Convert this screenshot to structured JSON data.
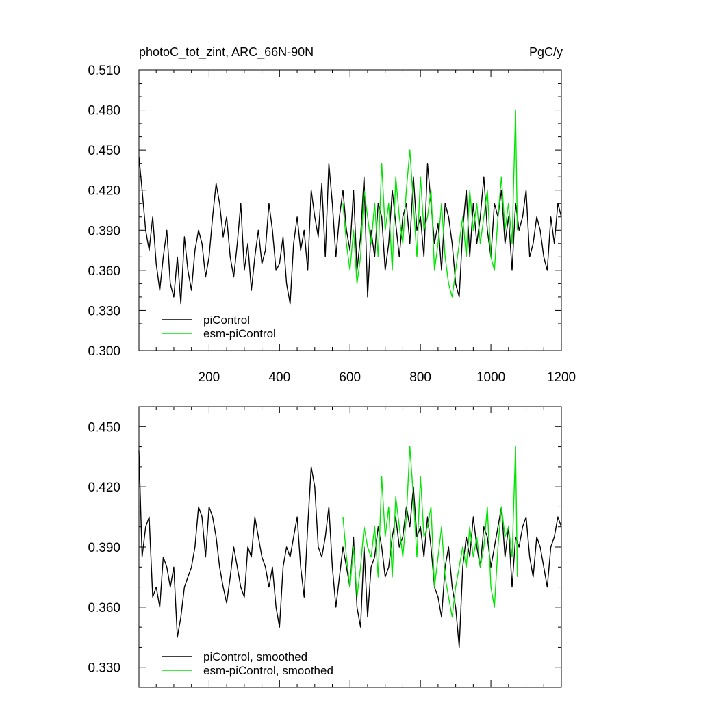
{
  "title": "photoC_tot_zint, ARC_66N-90N",
  "units": "PgC/y",
  "colors": {
    "piControl": "#000000",
    "esm_piControl": "#00e600"
  },
  "chart_data": [
    {
      "type": "line",
      "panel": "top",
      "title": "photoC_tot_zint, ARC_66N-90N",
      "units": "PgC/y",
      "xlim": [
        1,
        1200
      ],
      "ylim": [
        0.3,
        0.51
      ],
      "xticks": [
        200,
        400,
        600,
        800,
        1000,
        1200
      ],
      "xtick_labels": [
        "200",
        "400",
        "600",
        "800",
        "1000",
        "1200"
      ],
      "yticks": [
        0.3,
        0.33,
        0.36,
        0.39,
        0.42,
        0.45,
        0.48,
        0.51
      ],
      "ytick_labels": [
        "0.300",
        "0.330",
        "0.360",
        "0.390",
        "0.420",
        "0.450",
        "0.480",
        "0.510"
      ],
      "legend_position": "bottom-left",
      "series": [
        {
          "name": "piControl",
          "color": "#000000",
          "x": [
            1,
            10,
            20,
            30,
            40,
            50,
            60,
            70,
            80,
            90,
            100,
            110,
            120,
            130,
            140,
            150,
            160,
            170,
            180,
            190,
            200,
            210,
            220,
            230,
            240,
            250,
            260,
            270,
            280,
            290,
            300,
            310,
            320,
            330,
            340,
            350,
            360,
            370,
            380,
            390,
            400,
            410,
            420,
            430,
            440,
            450,
            460,
            470,
            480,
            490,
            500,
            510,
            520,
            530,
            540,
            550,
            560,
            570,
            580,
            590,
            600,
            610,
            620,
            630,
            640,
            650,
            660,
            670,
            680,
            690,
            700,
            710,
            720,
            730,
            740,
            750,
            760,
            770,
            780,
            790,
            800,
            810,
            820,
            830,
            840,
            850,
            860,
            870,
            880,
            890,
            900,
            910,
            920,
            930,
            940,
            950,
            960,
            970,
            980,
            990,
            1000,
            1010,
            1020,
            1030,
            1040,
            1050,
            1060,
            1070,
            1080,
            1090,
            1100,
            1110,
            1120,
            1130,
            1140,
            1150,
            1160,
            1170,
            1180,
            1190,
            1200
          ],
          "y": [
            0.445,
            0.42,
            0.39,
            0.375,
            0.4,
            0.365,
            0.345,
            0.37,
            0.39,
            0.35,
            0.34,
            0.37,
            0.335,
            0.385,
            0.36,
            0.345,
            0.375,
            0.39,
            0.38,
            0.355,
            0.37,
            0.4,
            0.425,
            0.41,
            0.385,
            0.4,
            0.37,
            0.355,
            0.38,
            0.41,
            0.36,
            0.38,
            0.345,
            0.37,
            0.39,
            0.365,
            0.375,
            0.41,
            0.39,
            0.36,
            0.365,
            0.385,
            0.35,
            0.335,
            0.38,
            0.4,
            0.375,
            0.39,
            0.36,
            0.42,
            0.4,
            0.385,
            0.425,
            0.37,
            0.44,
            0.41,
            0.37,
            0.4,
            0.42,
            0.39,
            0.375,
            0.42,
            0.36,
            0.385,
            0.43,
            0.34,
            0.39,
            0.37,
            0.41,
            0.4,
            0.36,
            0.38,
            0.42,
            0.395,
            0.37,
            0.4,
            0.41,
            0.38,
            0.43,
            0.39,
            0.4,
            0.37,
            0.44,
            0.41,
            0.38,
            0.395,
            0.36,
            0.41,
            0.4,
            0.38,
            0.35,
            0.34,
            0.39,
            0.42,
            0.37,
            0.41,
            0.38,
            0.4,
            0.43,
            0.39,
            0.37,
            0.41,
            0.4,
            0.42,
            0.38,
            0.4,
            0.36,
            0.41,
            0.39,
            0.4,
            0.42,
            0.37,
            0.38,
            0.4,
            0.39,
            0.37,
            0.36,
            0.4,
            0.38,
            0.41,
            0.4
          ]
        },
        {
          "name": "esm-piControl",
          "color": "#00e600",
          "x": [
            580,
            590,
            600,
            610,
            620,
            630,
            640,
            650,
            660,
            670,
            680,
            690,
            700,
            710,
            720,
            730,
            740,
            750,
            760,
            770,
            780,
            790,
            800,
            810,
            820,
            830,
            840,
            850,
            860,
            870,
            880,
            890,
            900,
            910,
            920,
            930,
            940,
            950,
            960,
            970,
            980,
            990,
            1000,
            1010,
            1020,
            1030,
            1040,
            1050,
            1060,
            1070,
            1075
          ],
          "y": [
            0.41,
            0.38,
            0.36,
            0.39,
            0.35,
            0.37,
            0.42,
            0.4,
            0.38,
            0.41,
            0.37,
            0.44,
            0.39,
            0.41,
            0.36,
            0.43,
            0.4,
            0.38,
            0.42,
            0.45,
            0.41,
            0.37,
            0.43,
            0.39,
            0.4,
            0.42,
            0.36,
            0.38,
            0.41,
            0.37,
            0.35,
            0.34,
            0.36,
            0.38,
            0.4,
            0.37,
            0.42,
            0.39,
            0.41,
            0.38,
            0.4,
            0.42,
            0.37,
            0.36,
            0.4,
            0.43,
            0.39,
            0.41,
            0.38,
            0.48,
            0.39
          ]
        }
      ]
    },
    {
      "type": "line",
      "panel": "bottom",
      "xlim": [
        1,
        1200
      ],
      "ylim": [
        0.32,
        0.46
      ],
      "yticks": [
        0.33,
        0.36,
        0.39,
        0.42,
        0.45
      ],
      "ytick_labels": [
        "0.330",
        "0.360",
        "0.390",
        "0.420",
        "0.450"
      ],
      "legend_position": "bottom-left",
      "series": [
        {
          "name": "piControl, smoothed",
          "color": "#000000",
          "x": [
            1,
            10,
            20,
            30,
            40,
            50,
            60,
            70,
            80,
            90,
            100,
            110,
            120,
            130,
            140,
            150,
            160,
            170,
            180,
            190,
            200,
            210,
            220,
            230,
            240,
            250,
            260,
            270,
            280,
            290,
            300,
            310,
            320,
            330,
            340,
            350,
            360,
            370,
            380,
            390,
            400,
            410,
            420,
            430,
            440,
            450,
            460,
            470,
            480,
            490,
            500,
            510,
            520,
            530,
            540,
            550,
            560,
            570,
            580,
            590,
            600,
            610,
            620,
            630,
            640,
            650,
            660,
            670,
            680,
            690,
            700,
            710,
            720,
            730,
            740,
            750,
            760,
            770,
            780,
            790,
            800,
            810,
            820,
            830,
            840,
            850,
            860,
            870,
            880,
            890,
            900,
            910,
            920,
            930,
            940,
            950,
            960,
            970,
            980,
            990,
            1000,
            1010,
            1020,
            1030,
            1040,
            1050,
            1060,
            1070,
            1080,
            1090,
            1100,
            1110,
            1120,
            1130,
            1140,
            1150,
            1160,
            1170,
            1180,
            1190,
            1200
          ],
          "y": [
            0.438,
            0.385,
            0.4,
            0.405,
            0.365,
            0.37,
            0.36,
            0.385,
            0.38,
            0.37,
            0.38,
            0.345,
            0.355,
            0.37,
            0.375,
            0.38,
            0.39,
            0.41,
            0.405,
            0.385,
            0.41,
            0.405,
            0.395,
            0.38,
            0.37,
            0.362,
            0.375,
            0.39,
            0.38,
            0.37,
            0.365,
            0.39,
            0.385,
            0.405,
            0.395,
            0.385,
            0.38,
            0.37,
            0.38,
            0.36,
            0.35,
            0.38,
            0.39,
            0.385,
            0.395,
            0.405,
            0.38,
            0.365,
            0.4,
            0.43,
            0.42,
            0.39,
            0.385,
            0.395,
            0.41,
            0.38,
            0.36,
            0.375,
            0.39,
            0.38,
            0.37,
            0.395,
            0.36,
            0.35,
            0.39,
            0.355,
            0.38,
            0.385,
            0.4,
            0.39,
            0.375,
            0.38,
            0.395,
            0.405,
            0.39,
            0.395,
            0.41,
            0.4,
            0.42,
            0.395,
            0.4,
            0.385,
            0.405,
            0.39,
            0.37,
            0.365,
            0.355,
            0.38,
            0.39,
            0.37,
            0.36,
            0.34,
            0.38,
            0.395,
            0.385,
            0.405,
            0.39,
            0.38,
            0.4,
            0.395,
            0.38,
            0.39,
            0.4,
            0.41,
            0.385,
            0.4,
            0.37,
            0.395,
            0.39,
            0.4,
            0.405,
            0.385,
            0.375,
            0.395,
            0.39,
            0.38,
            0.37,
            0.39,
            0.395,
            0.405,
            0.4
          ]
        },
        {
          "name": "esm-piControl, smoothed",
          "color": "#00e600",
          "x": [
            580,
            590,
            600,
            610,
            620,
            630,
            640,
            650,
            660,
            670,
            680,
            690,
            700,
            710,
            720,
            730,
            740,
            750,
            760,
            770,
            780,
            790,
            800,
            810,
            820,
            830,
            840,
            850,
            860,
            870,
            880,
            890,
            900,
            910,
            920,
            930,
            940,
            950,
            960,
            970,
            980,
            990,
            1000,
            1010,
            1020,
            1030,
            1040,
            1050,
            1060,
            1070,
            1075
          ],
          "y": [
            0.405,
            0.385,
            0.37,
            0.39,
            0.365,
            0.38,
            0.4,
            0.39,
            0.385,
            0.4,
            0.375,
            0.425,
            0.395,
            0.41,
            0.375,
            0.415,
            0.4,
            0.385,
            0.405,
            0.44,
            0.415,
            0.385,
            0.425,
            0.395,
            0.4,
            0.41,
            0.37,
            0.385,
            0.4,
            0.375,
            0.365,
            0.355,
            0.37,
            0.38,
            0.39,
            0.38,
            0.4,
            0.385,
            0.395,
            0.38,
            0.39,
            0.41,
            0.37,
            0.36,
            0.39,
            0.41,
            0.395,
            0.4,
            0.385,
            0.44,
            0.375
          ]
        }
      ]
    }
  ]
}
